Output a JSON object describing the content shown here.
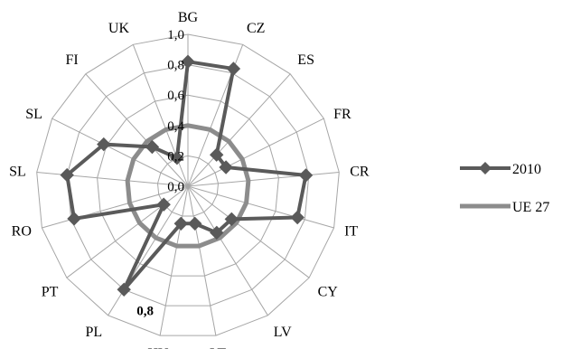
{
  "chart_data": {
    "type": "radar",
    "categories": [
      "BG",
      "CZ",
      "ES",
      "FR",
      "CR",
      "IT",
      "CY",
      "LV",
      "LT",
      "HU",
      "PL",
      "PT",
      "RO",
      "SL",
      "SL",
      "FI",
      "UK"
    ],
    "axis": {
      "min": 0.0,
      "max": 1.0,
      "step": 0.2,
      "tick_labels": [
        "0,0",
        "0,2",
        "0,4",
        "0,6",
        "0,8",
        "1,0"
      ]
    },
    "series": [
      {
        "name": "2010",
        "color": "#5a5a5a",
        "marker": "diamond",
        "values": [
          0.82,
          0.83,
          0.28,
          0.28,
          0.78,
          0.75,
          0.36,
          0.36,
          0.25,
          0.25,
          0.8,
          0.2,
          0.78,
          0.8,
          0.62,
          0.35,
          0.2
        ]
      },
      {
        "name": "UE 27",
        "color": "#8c8c8c",
        "marker": "none",
        "values": [
          0.4,
          0.4,
          0.4,
          0.4,
          0.4,
          0.4,
          0.4,
          0.4,
          0.4,
          0.4,
          0.4,
          0.4,
          0.4,
          0.4,
          0.4,
          0.4,
          0.4
        ]
      }
    ],
    "annotations": [
      {
        "text": "0,8",
        "category_index": 10
      }
    ],
    "grid": true,
    "legend": "right"
  }
}
